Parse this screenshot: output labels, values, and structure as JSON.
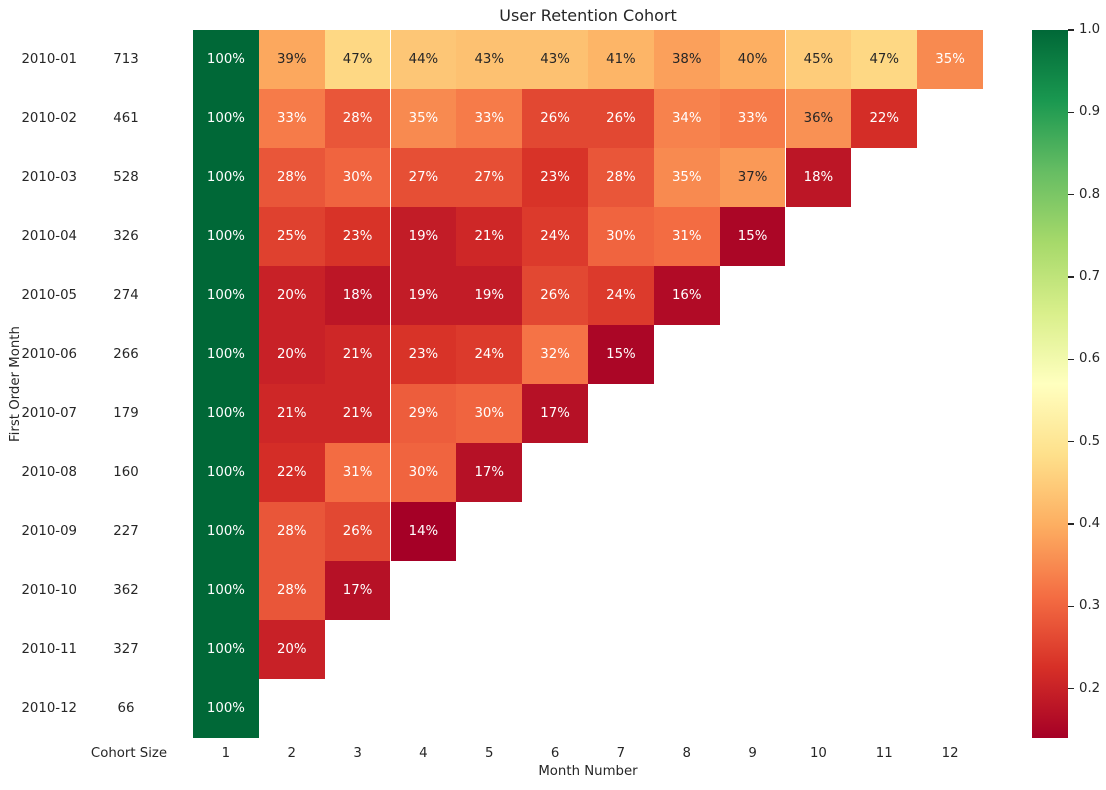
{
  "chart_data": {
    "type": "heatmap",
    "title": "User Retention Cohort",
    "xlabel": "Month Number",
    "ylabel": "First Order Month",
    "row_header": "Cohort Size",
    "x_ticks": [
      "1",
      "2",
      "3",
      "4",
      "5",
      "6",
      "7",
      "8",
      "9",
      "10",
      "11",
      "12"
    ],
    "rows": [
      {
        "month": "2010-01",
        "cohort_size": "713",
        "retention_pct": [
          100,
          39,
          47,
          44,
          43,
          43,
          41,
          38,
          40,
          45,
          47,
          35
        ]
      },
      {
        "month": "2010-02",
        "cohort_size": "461",
        "retention_pct": [
          100,
          33,
          28,
          35,
          33,
          26,
          26,
          34,
          33,
          36,
          22
        ]
      },
      {
        "month": "2010-03",
        "cohort_size": "528",
        "retention_pct": [
          100,
          28,
          30,
          27,
          27,
          23,
          28,
          35,
          37,
          18
        ]
      },
      {
        "month": "2010-04",
        "cohort_size": "326",
        "retention_pct": [
          100,
          25,
          23,
          19,
          21,
          24,
          30,
          31,
          15
        ]
      },
      {
        "month": "2010-05",
        "cohort_size": "274",
        "retention_pct": [
          100,
          20,
          18,
          19,
          19,
          26,
          24,
          16
        ]
      },
      {
        "month": "2010-06",
        "cohort_size": "266",
        "retention_pct": [
          100,
          20,
          21,
          23,
          24,
          32,
          15
        ]
      },
      {
        "month": "2010-07",
        "cohort_size": "179",
        "retention_pct": [
          100,
          21,
          21,
          29,
          30,
          17
        ]
      },
      {
        "month": "2010-08",
        "cohort_size": "160",
        "retention_pct": [
          100,
          22,
          31,
          30,
          17
        ]
      },
      {
        "month": "2010-09",
        "cohort_size": "227",
        "retention_pct": [
          100,
          28,
          26,
          14
        ]
      },
      {
        "month": "2010-10",
        "cohort_size": "362",
        "retention_pct": [
          100,
          28,
          17
        ]
      },
      {
        "month": "2010-11",
        "cohort_size": "327",
        "retention_pct": [
          100,
          20
        ]
      },
      {
        "month": "2010-12",
        "cohort_size": "66",
        "retention_pct": [
          100
        ]
      }
    ],
    "value_format": "percent",
    "vmin": 0.14,
    "vmax": 1.0,
    "colorbar_ticks": [
      "1.0",
      "0.9",
      "0.8",
      "0.7",
      "0.6",
      "0.5",
      "0.4",
      "0.3",
      "0.2"
    ],
    "colormap": {
      "name": "RdYlGn",
      "stops": [
        "#a50026",
        "#d73027",
        "#f46d43",
        "#fdae61",
        "#fee08b",
        "#ffffbf",
        "#d9ef8b",
        "#a6d96a",
        "#66bd63",
        "#1a9850",
        "#006837"
      ]
    },
    "colors": {
      "annotation_dark": "#262626",
      "annotation_light": "#ffffff",
      "axis_text": "#262626",
      "background": "#ffffff"
    },
    "legend_position": "right",
    "grid": false
  }
}
